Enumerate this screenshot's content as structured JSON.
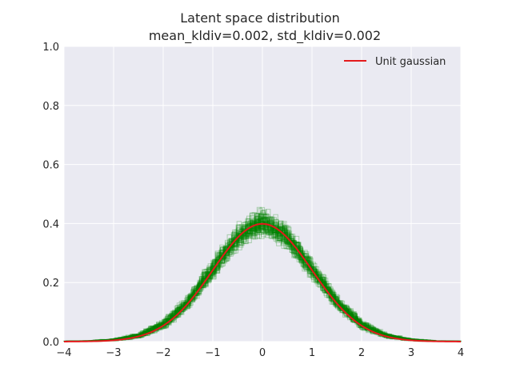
{
  "chart_data": {
    "type": "line",
    "title_line1": "Latent space distribution",
    "title_line2": "mean_kldiv=0.002, std_kldiv=0.002",
    "xlabel": "",
    "ylabel": "",
    "xlim": [
      -4,
      4
    ],
    "ylim": [
      0,
      1.0
    ],
    "x_ticks": [
      -4,
      -3,
      -2,
      -1,
      0,
      1,
      2,
      3,
      4
    ],
    "x_tick_labels": [
      "−4",
      "−3",
      "−2",
      "−1",
      "0",
      "1",
      "2",
      "3",
      "4"
    ],
    "y_ticks": [
      0.0,
      0.2,
      0.4,
      0.6,
      0.8,
      1.0
    ],
    "y_tick_labels": [
      "0.0",
      "0.2",
      "0.4",
      "0.6",
      "0.8",
      "1.0"
    ],
    "grid": true,
    "legend_position": "top-right",
    "series": [
      {
        "name": "Unit gaussian",
        "kind": "line",
        "color": "#e41a1c",
        "x": [
          -4.0,
          -3.5,
          -3.0,
          -2.5,
          -2.0,
          -1.5,
          -1.0,
          -0.5,
          0.0,
          0.5,
          1.0,
          1.5,
          2.0,
          2.5,
          3.0,
          3.5,
          4.0
        ],
        "y": [
          0.0001,
          0.0009,
          0.0044,
          0.0175,
          0.054,
          0.1295,
          0.242,
          0.3521,
          0.3989,
          0.3521,
          0.242,
          0.1295,
          0.054,
          0.0175,
          0.0044,
          0.0009,
          0.0001
        ]
      },
      {
        "kind": "histograms",
        "color": "#008000",
        "y_range_band": {
          "x": [
            -4.0,
            -3.5,
            -3.0,
            -2.5,
            -2.0,
            -1.5,
            -1.0,
            -0.5,
            0.0,
            0.5,
            1.0,
            1.5,
            2.0,
            2.5,
            3.0,
            3.5,
            4.0
          ],
          "low": [
            0.0,
            0.0,
            0.0,
            0.008,
            0.035,
            0.1,
            0.2,
            0.3,
            0.34,
            0.3,
            0.2,
            0.1,
            0.035,
            0.008,
            0.0,
            0.0,
            0.0
          ],
          "high": [
            0.002,
            0.004,
            0.012,
            0.032,
            0.08,
            0.165,
            0.29,
            0.41,
            0.47,
            0.41,
            0.29,
            0.165,
            0.08,
            0.032,
            0.012,
            0.004,
            0.002
          ]
        }
      }
    ]
  }
}
